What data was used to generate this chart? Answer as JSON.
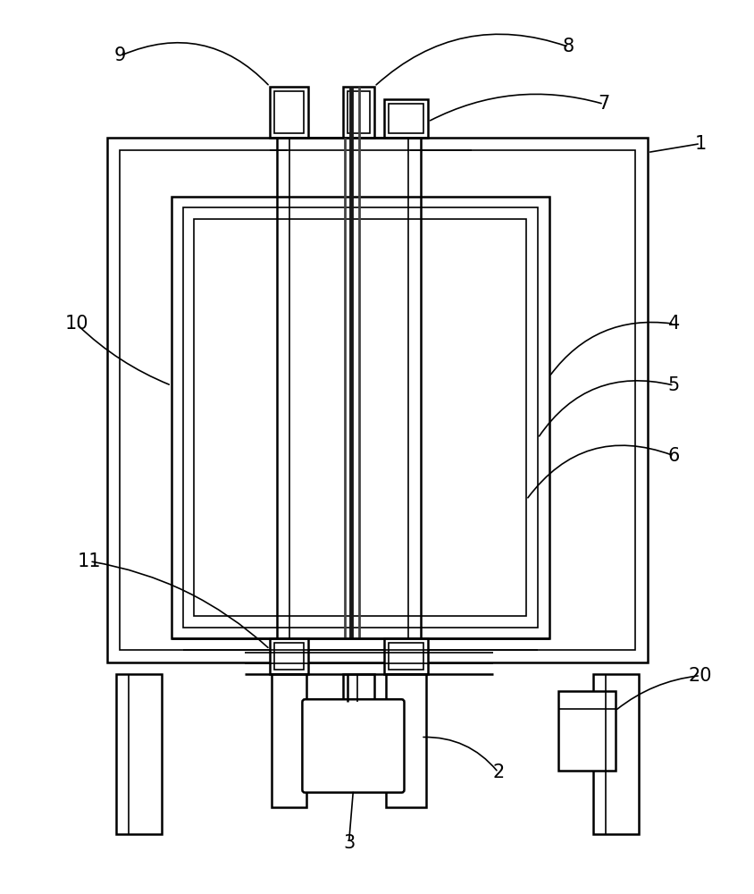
{
  "bg_color": "#ffffff",
  "line_color": "#000000",
  "lw_main": 1.8,
  "lw_inner": 1.2,
  "label_fs": 15,
  "fig_width": 8.45,
  "fig_height": 10.0
}
